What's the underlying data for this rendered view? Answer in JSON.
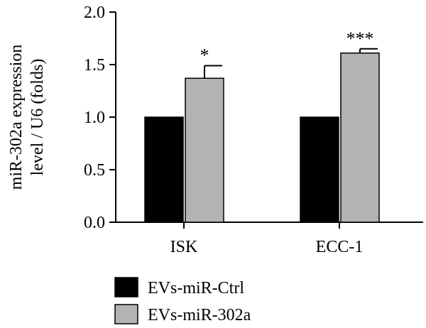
{
  "chart_data": {
    "type": "bar",
    "categories": [
      "ISK",
      "ECC-1"
    ],
    "ylabel_lines": [
      "miR-302a expression",
      "level / U6 (folds)"
    ],
    "ylim": [
      0,
      2.0
    ],
    "yticks": [
      "0.0",
      "0.5",
      "1.0",
      "1.5",
      "2.0"
    ],
    "ytick_values": [
      0,
      0.5,
      1.0,
      1.5,
      2.0
    ],
    "series": [
      {
        "name": "EVs-miR-Ctrl",
        "values": [
          1.0,
          1.0
        ],
        "errors": [
          0,
          0
        ],
        "color": "#000000"
      },
      {
        "name": "EVs-miR-302a",
        "values": [
          1.37,
          1.61
        ],
        "errors": [
          0.12,
          0.04
        ],
        "color": "#b3b3b3"
      }
    ],
    "annotations": [
      "*",
      "***"
    ],
    "grid": false,
    "legend_position": "bottom-left"
  }
}
